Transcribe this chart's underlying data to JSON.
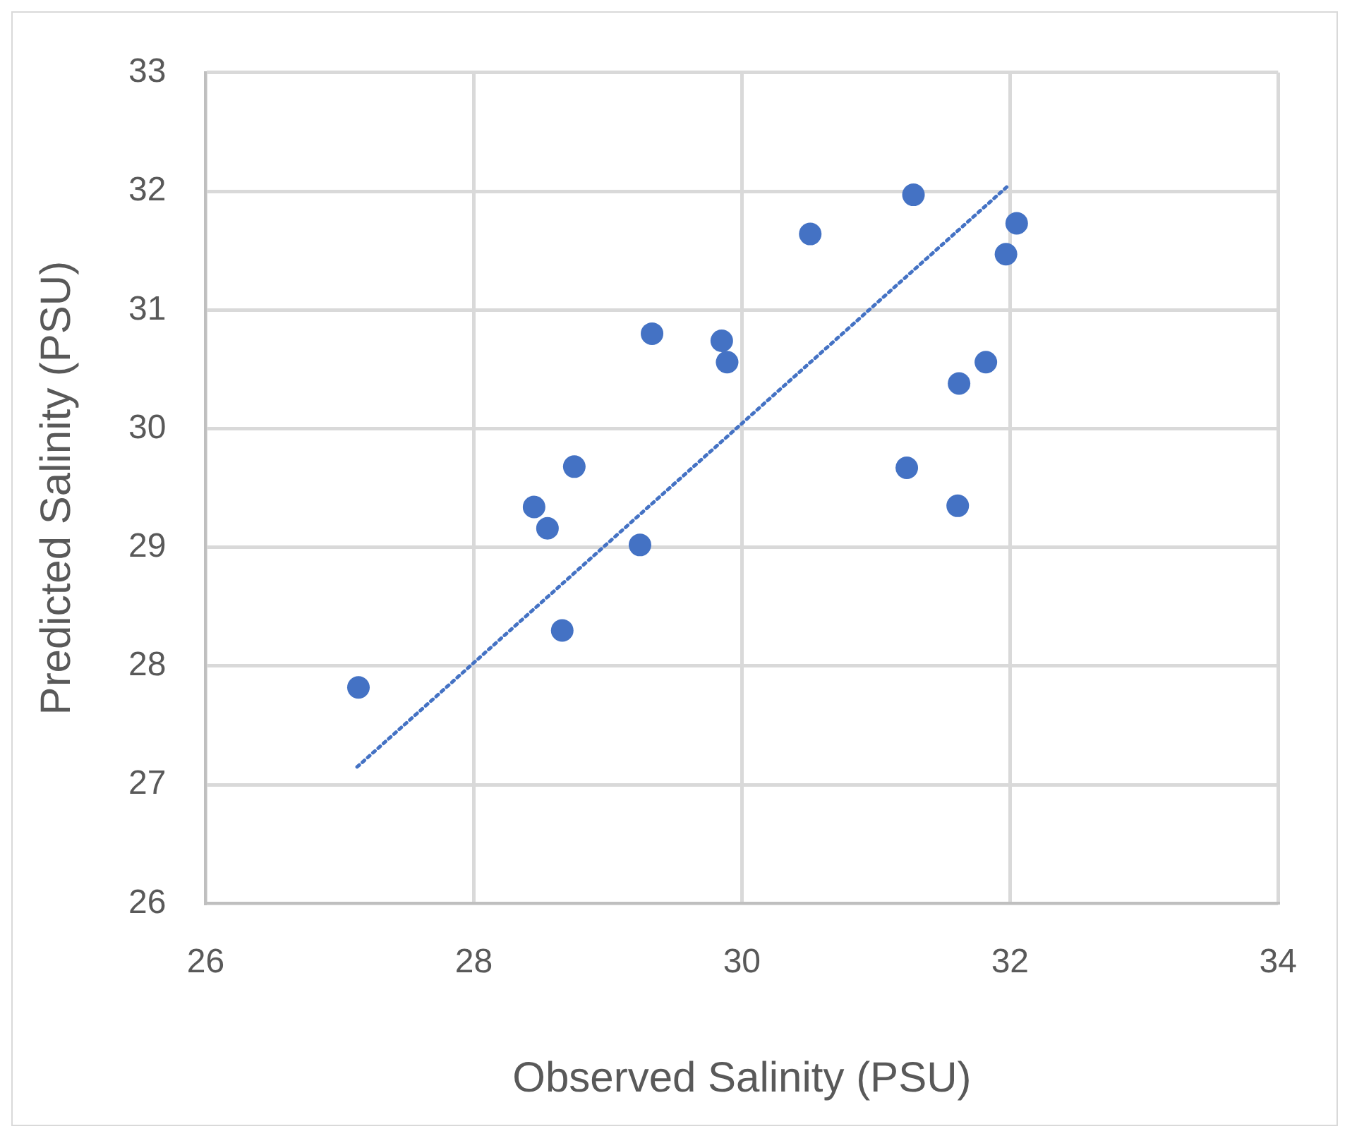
{
  "chart_data": {
    "type": "scatter",
    "xlabel": "Observed Salinity (PSU)",
    "ylabel": "Predicted Salinity (PSU)",
    "xlim": [
      26,
      34
    ],
    "xticks": [
      26,
      28,
      30,
      32,
      34
    ],
    "ylim": [
      26,
      33
    ],
    "yticks": [
      26,
      27,
      28,
      29,
      30,
      31,
      32,
      33
    ],
    "grid": true,
    "legend": false,
    "series": [
      {
        "type": "scatter",
        "color": "#4472c4",
        "marker": "circle",
        "x": [
          28.45,
          28.55,
          28.75,
          29.24,
          28.66,
          27.14,
          29.33,
          29.85,
          29.89,
          30.51,
          31.28,
          32.05,
          31.97,
          31.82,
          31.62,
          31.23,
          31.61
        ],
        "values": [
          29.34,
          29.16,
          29.68,
          29.02,
          28.3,
          27.82,
          30.8,
          30.74,
          30.56,
          31.64,
          31.97,
          31.73,
          31.47,
          30.56,
          30.38,
          29.67,
          29.35
        ]
      },
      {
        "type": "line",
        "color": "#4472c4",
        "marker": "none",
        "line_style": "dotted",
        "x": [
          27.13,
          31.99
        ],
        "values": [
          27.15,
          32.05
        ]
      }
    ]
  }
}
